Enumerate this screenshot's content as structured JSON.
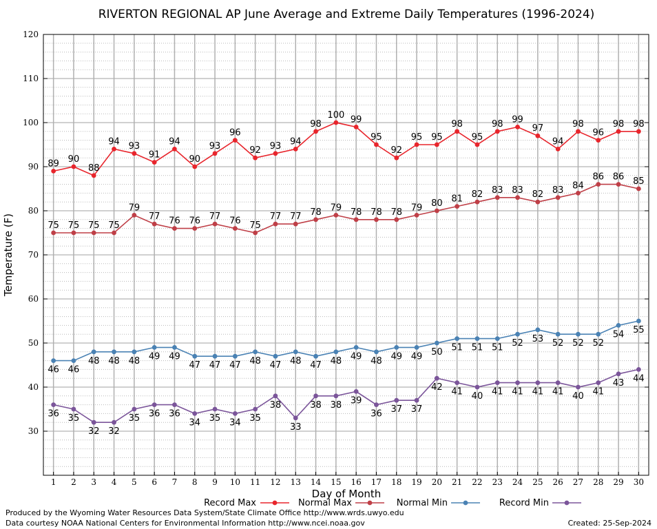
{
  "chart_data": {
    "type": "line",
    "title": "RIVERTON REGIONAL AP June Average and Extreme Daily Temperatures (1996-2024)",
    "xlabel": "Day of Month",
    "ylabel": "Temperature (F)",
    "ylim": [
      20,
      120
    ],
    "yticks": [
      30,
      40,
      50,
      60,
      70,
      80,
      90,
      100,
      110,
      120
    ],
    "x": [
      1,
      2,
      3,
      4,
      5,
      6,
      7,
      8,
      9,
      10,
      11,
      12,
      13,
      14,
      15,
      16,
      17,
      18,
      19,
      20,
      21,
      22,
      23,
      24,
      25,
      26,
      27,
      28,
      29,
      30
    ],
    "grid": true,
    "legend_position": "bottom",
    "series": [
      {
        "name": "Record Max",
        "color": "#e8252c",
        "label_position": "above",
        "values": [
          89,
          90,
          88,
          94,
          93,
          91,
          94,
          90,
          93,
          96,
          92,
          93,
          94,
          98,
          100,
          99,
          95,
          92,
          95,
          95,
          98,
          95,
          98,
          99,
          97,
          94,
          98,
          96,
          98,
          98
        ]
      },
      {
        "name": "Normal Max",
        "color": "#bf3f47",
        "label_position": "above",
        "values": [
          75,
          75,
          75,
          75,
          79,
          77,
          76,
          76,
          77,
          76,
          75,
          77,
          77,
          78,
          79,
          78,
          78,
          78,
          79,
          80,
          81,
          82,
          83,
          83,
          82,
          83,
          84,
          86,
          86,
          85
        ]
      },
      {
        "name": "Normal Min",
        "color": "#4a82b4",
        "label_position": "below",
        "values": [
          46,
          46,
          48,
          48,
          48,
          49,
          49,
          47,
          47,
          47,
          48,
          47,
          48,
          47,
          48,
          49,
          48,
          49,
          49,
          50,
          51,
          51,
          51,
          52,
          53,
          52,
          52,
          52,
          54,
          55
        ]
      },
      {
        "name": "Record Min",
        "color": "#7b559a",
        "label_position": "below",
        "values": [
          36,
          35,
          32,
          32,
          35,
          36,
          36,
          34,
          35,
          34,
          35,
          38,
          33,
          38,
          38,
          39,
          36,
          37,
          37,
          42,
          41,
          40,
          41,
          41,
          41,
          41,
          40,
          41,
          43,
          44
        ]
      }
    ]
  },
  "footer": {
    "produced_by": "Produced by the Wyoming Water Resources Data System/State Climate Office http://www.wrds.uwyo.edu",
    "courtesy": "Data courtesy NOAA National Centers for Environmental Information http://www.ncei.noaa.gov",
    "created": "Created:  25-Sep-2024"
  }
}
